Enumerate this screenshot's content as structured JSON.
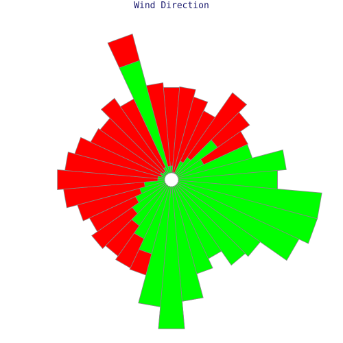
{
  "chart_data": {
    "type": "rose",
    "title": "Wind Direction",
    "sector_count": 36,
    "sector_step_deg": 10,
    "center_hole_radius": 10,
    "colors": {
      "outer": "#ff0000",
      "inner": "#00ff00",
      "edge": "#888888",
      "hub": "#888888"
    },
    "series": [
      {
        "name": "",
        "color": "#ff0000",
        "values": [
          135,
          136,
          125,
          111,
          155,
          139,
          123,
          109,
          150,
          155,
          32,
          32,
          96,
          88,
          111,
          127,
          142,
          178,
          218,
          186,
          144,
          142,
          136,
          142,
          132,
          142,
          158,
          167,
          156,
          146,
          130,
          127,
          145,
          130,
          220,
          142
        ]
      },
      {
        "name": "",
        "color": "#00ff00",
        "values": [
          20,
          10,
          9,
          30,
          40,
          82,
          52,
          122,
          168,
          155,
          220,
          220,
          205,
          158,
          152,
          127,
          142,
          178,
          218,
          186,
          112,
          95,
          82,
          70,
          58,
          48,
          40,
          20,
          20,
          15,
          18,
          15,
          15,
          20,
          180,
          20
        ]
      }
    ]
  }
}
